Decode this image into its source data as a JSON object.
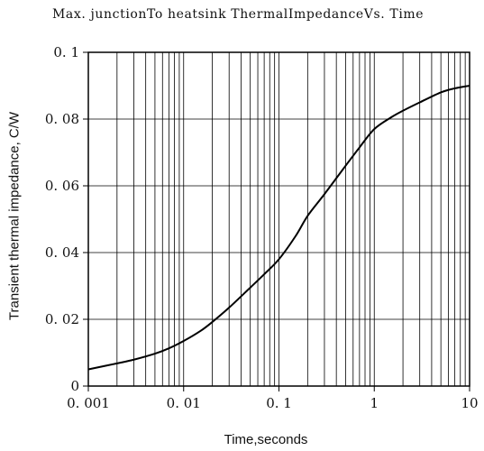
{
  "chart_data": {
    "type": "line",
    "title": "Max. junction To heatsink Thermal Impedance Vs. Time",
    "title_display": "Max. junctionTo heatsink ThermalImpedanceVs. Time",
    "xlabel": "Time,seconds",
    "ylabel": "Transient thermal impedance, C/W",
    "x_scale": "log",
    "xlim": [
      0.001,
      10
    ],
    "ylim": [
      0,
      0.1
    ],
    "x_ticks": [
      0.001,
      0.01,
      0.1,
      1,
      10
    ],
    "x_tick_labels": [
      "0. 001",
      "0. 01",
      "0. 1",
      "1",
      "10"
    ],
    "y_ticks": [
      0,
      0.02,
      0.04,
      0.06,
      0.08,
      0.1
    ],
    "y_tick_labels": [
      "0",
      "0. 02",
      "0. 04",
      "0. 06",
      "0. 08",
      "0. 1"
    ],
    "grid": true,
    "series": [
      {
        "x": [
          0.001,
          0.002,
          0.003,
          0.005,
          0.007,
          0.01,
          0.015,
          0.02,
          0.03,
          0.05,
          0.07,
          0.1,
          0.15,
          0.2,
          0.3,
          0.5,
          0.7,
          1,
          1.5,
          2,
          3,
          5,
          7,
          10
        ],
        "y": [
          0.005,
          0.0068,
          0.0079,
          0.0097,
          0.0113,
          0.0135,
          0.0165,
          0.0192,
          0.0235,
          0.0295,
          0.0335,
          0.038,
          0.045,
          0.051,
          0.0575,
          0.066,
          0.0715,
          0.077,
          0.0805,
          0.0825,
          0.085,
          0.088,
          0.0892,
          0.09
        ]
      }
    ]
  }
}
